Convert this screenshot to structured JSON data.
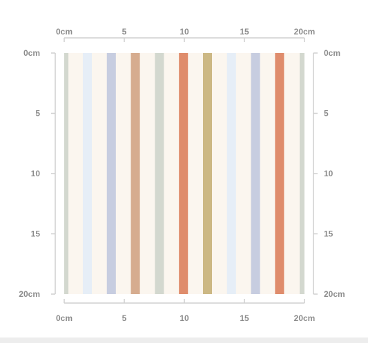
{
  "ruler": {
    "unit": "cm",
    "range": [
      0,
      20
    ],
    "top_ticks": [
      "0cm",
      "5",
      "10",
      "15",
      "20cm"
    ],
    "bottom_ticks": [
      "0cm",
      "5",
      "10",
      "15",
      "20cm"
    ],
    "left_ticks": [
      "0cm",
      "5",
      "10",
      "15",
      "20cm"
    ],
    "right_ticks": [
      "0cm",
      "5",
      "10",
      "15",
      "20cm"
    ],
    "tick_values": [
      0,
      5,
      10,
      15,
      20
    ],
    "axis_color": "#cfcfcf",
    "label_color": "#8c8c8c"
  },
  "pattern": {
    "background_color": "#fbf6ef",
    "stripes": [
      {
        "start": 0.0,
        "end": 0.35,
        "color": "#d3d8cf"
      },
      {
        "start": 1.55,
        "end": 2.3,
        "color": "#e6eef7"
      },
      {
        "start": 3.55,
        "end": 4.3,
        "color": "#c7cde0"
      },
      {
        "start": 5.55,
        "end": 6.3,
        "color": "#d6ac8f"
      },
      {
        "start": 7.55,
        "end": 8.3,
        "color": "#d3d8cf"
      },
      {
        "start": 9.55,
        "end": 10.3,
        "color": "#df8c6c"
      },
      {
        "start": 11.55,
        "end": 12.3,
        "color": "#ccb884"
      },
      {
        "start": 13.55,
        "end": 14.3,
        "color": "#e6eef7"
      },
      {
        "start": 15.55,
        "end": 16.3,
        "color": "#c7cde0"
      },
      {
        "start": 17.55,
        "end": 18.3,
        "color": "#df8c6c"
      },
      {
        "start": 19.6,
        "end": 20.0,
        "color": "#d3d8cf"
      }
    ]
  }
}
